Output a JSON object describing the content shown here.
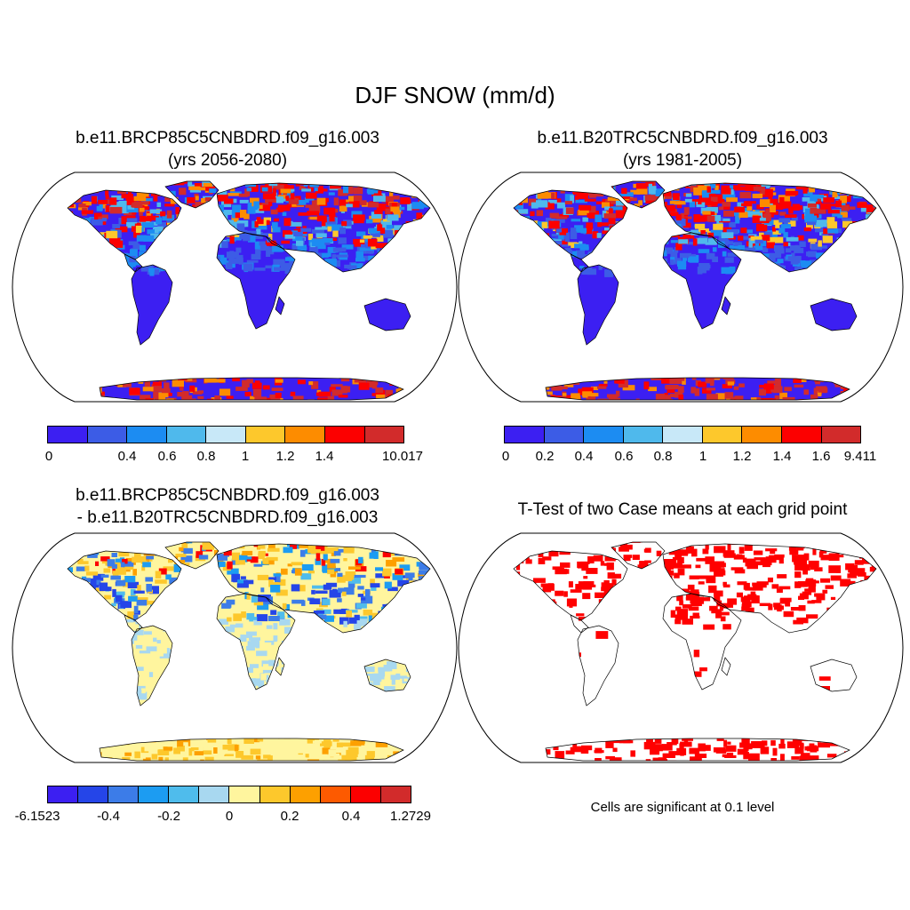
{
  "title": "DJF SNOW (mm/d)",
  "panels": {
    "p1": {
      "title_line1": "b.e11.BRCP85C5CNBDRD.f09_g16.003",
      "title_line2": "(yrs 2056-2080)",
      "colorbar": {
        "colors": [
          "#3c1ff2",
          "#3c5ce6",
          "#1c8cf2",
          "#4fb9ec",
          "#c8e8f8",
          "#fdc82c",
          "#fd8c00",
          "#fc0000",
          "#d22b2b"
        ],
        "ticks": [
          "0",
          "0.4",
          "0.6",
          "0.8",
          "1",
          "1.2",
          "1.4",
          "10.017"
        ]
      }
    },
    "p2": {
      "title_line1": "b.e11.B20TRC5CNBDRD.f09_g16.003",
      "title_line2": "(yrs 1981-2005)",
      "colorbar": {
        "colors": [
          "#3c1ff2",
          "#3c5ce6",
          "#1c8cf2",
          "#4fb9ec",
          "#c8e8f8",
          "#fdc82c",
          "#fd8c00",
          "#fc0000",
          "#d22b2b"
        ],
        "ticks": [
          "0",
          "0.2",
          "0.4",
          "0.6",
          "0.8",
          "1",
          "1.2",
          "1.4",
          "1.6",
          "9.411"
        ]
      }
    },
    "p3": {
      "title_line1": "b.e11.BRCP85C5CNBDRD.f09_g16.003",
      "title_line2": "- b.e11.B20TRC5CNBDRD.f09_g16.003",
      "colorbar": {
        "colors": [
          "#3c1ff2",
          "#2545e8",
          "#3c7ce8",
          "#1c9cf2",
          "#4fbcec",
          "#a8d8f0",
          "#fff59e",
          "#fdc82c",
          "#fda000",
          "#fd5a00",
          "#fc0000",
          "#d22b2b"
        ],
        "ticks": [
          "-6.1523",
          "-0.4",
          "-0.2",
          "0",
          "0.2",
          "0.4",
          "1.2729"
        ]
      }
    },
    "p4": {
      "title_line1": "T-Test of two Case means at each grid point",
      "note": "Cells are significant at 0.1 level",
      "sig_color": "#ff0000"
    }
  }
}
